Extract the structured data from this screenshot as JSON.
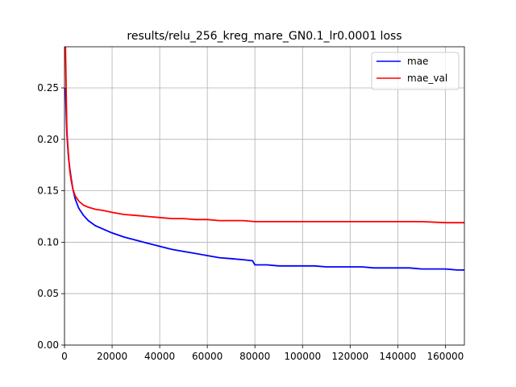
{
  "chart_data": {
    "type": "line",
    "title": "results/relu_256_kreg_mare_GN0.1_lr0.0001 loss",
    "xlabel": "",
    "ylabel": "",
    "xlim": [
      0,
      168000
    ],
    "ylim": [
      0,
      0.29
    ],
    "xticks": [
      0,
      20000,
      40000,
      60000,
      80000,
      100000,
      120000,
      140000,
      160000
    ],
    "yticks": [
      0.0,
      0.05,
      0.1,
      0.15,
      0.2,
      0.25
    ],
    "ytick_labels": [
      "0.00",
      "0.05",
      "0.10",
      "0.15",
      "0.20",
      "0.25"
    ],
    "grid": true,
    "legend_position": "top-right",
    "series": [
      {
        "name": "mae",
        "color": "#0000ff",
        "x": [
          400,
          700,
          1000,
          1300,
          1700,
          2200,
          2800,
          3500,
          4500,
          6000,
          8000,
          10000,
          13000,
          16000,
          20000,
          25000,
          30000,
          35000,
          40000,
          45000,
          50000,
          55000,
          60000,
          65000,
          70000,
          75000,
          79000,
          80000,
          85000,
          90000,
          95000,
          100000,
          105000,
          110000,
          115000,
          120000,
          125000,
          130000,
          135000,
          140000,
          145000,
          150000,
          155000,
          160000,
          165000,
          168000
        ],
        "y": [
          0.25,
          0.225,
          0.205,
          0.195,
          0.182,
          0.172,
          0.162,
          0.152,
          0.142,
          0.133,
          0.126,
          0.121,
          0.116,
          0.113,
          0.109,
          0.105,
          0.102,
          0.099,
          0.096,
          0.093,
          0.091,
          0.089,
          0.087,
          0.085,
          0.084,
          0.083,
          0.082,
          0.078,
          0.078,
          0.077,
          0.077,
          0.077,
          0.077,
          0.076,
          0.076,
          0.076,
          0.076,
          0.075,
          0.075,
          0.075,
          0.075,
          0.074,
          0.074,
          0.074,
          0.073,
          0.073
        ]
      },
      {
        "name": "mae_val",
        "color": "#ff0000",
        "x": [
          400,
          600,
          800,
          1000,
          1300,
          1700,
          2200,
          2800,
          3500,
          4500,
          6000,
          8000,
          10000,
          13000,
          16000,
          20000,
          25000,
          30000,
          35000,
          40000,
          45000,
          50000,
          55000,
          60000,
          65000,
          70000,
          75000,
          80000,
          90000,
          100000,
          110000,
          120000,
          130000,
          140000,
          150000,
          160000,
          168000
        ],
        "y": [
          0.29,
          0.262,
          0.232,
          0.208,
          0.198,
          0.184,
          0.17,
          0.16,
          0.152,
          0.145,
          0.14,
          0.136,
          0.134,
          0.132,
          0.131,
          0.129,
          0.127,
          0.126,
          0.125,
          0.124,
          0.123,
          0.123,
          0.122,
          0.122,
          0.121,
          0.121,
          0.121,
          0.12,
          0.12,
          0.12,
          0.12,
          0.12,
          0.12,
          0.12,
          0.12,
          0.119,
          0.119
        ]
      }
    ]
  }
}
